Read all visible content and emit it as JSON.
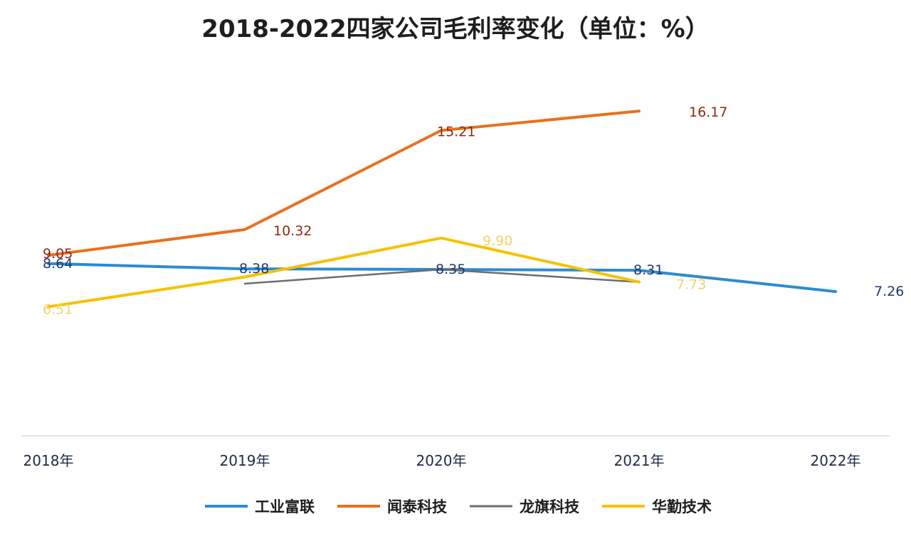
{
  "chart_data": {
    "type": "line",
    "title": "2018-2022四家公司毛利率变化（单位：%）",
    "xlabel": "",
    "ylabel": "",
    "categories": [
      "2018年",
      "2019年",
      "2020年",
      "2021年",
      "2022年"
    ],
    "ylim": [
      0,
      20
    ],
    "grid": false,
    "legend_position": "bottom",
    "series": [
      {
        "name": "工业富联",
        "color": "#2e8bd0",
        "values": [
          8.64,
          8.38,
          8.35,
          8.31,
          7.26
        ],
        "labels": [
          "8.64",
          "8.38",
          "8.35",
          "8.31",
          "7.26"
        ]
      },
      {
        "name": "闻泰科技",
        "color": "#e8701e",
        "values": [
          9.05,
          10.32,
          15.21,
          16.17,
          null
        ],
        "labels": [
          "9.05",
          "10.32",
          "15.21",
          "16.17",
          ""
        ]
      },
      {
        "name": "龙旗科技",
        "color": "#6d6d6d",
        "values": [
          null,
          7.65,
          8.35,
          7.73,
          null
        ],
        "labels": [
          "",
          "",
          "",
          "",
          ""
        ]
      },
      {
        "name": "华勤技术",
        "color": "#f5c200",
        "values": [
          6.51,
          7.98,
          9.9,
          7.73,
          null
        ],
        "labels": [
          "6.51",
          "",
          "9.90",
          "7.73",
          ""
        ]
      }
    ]
  }
}
